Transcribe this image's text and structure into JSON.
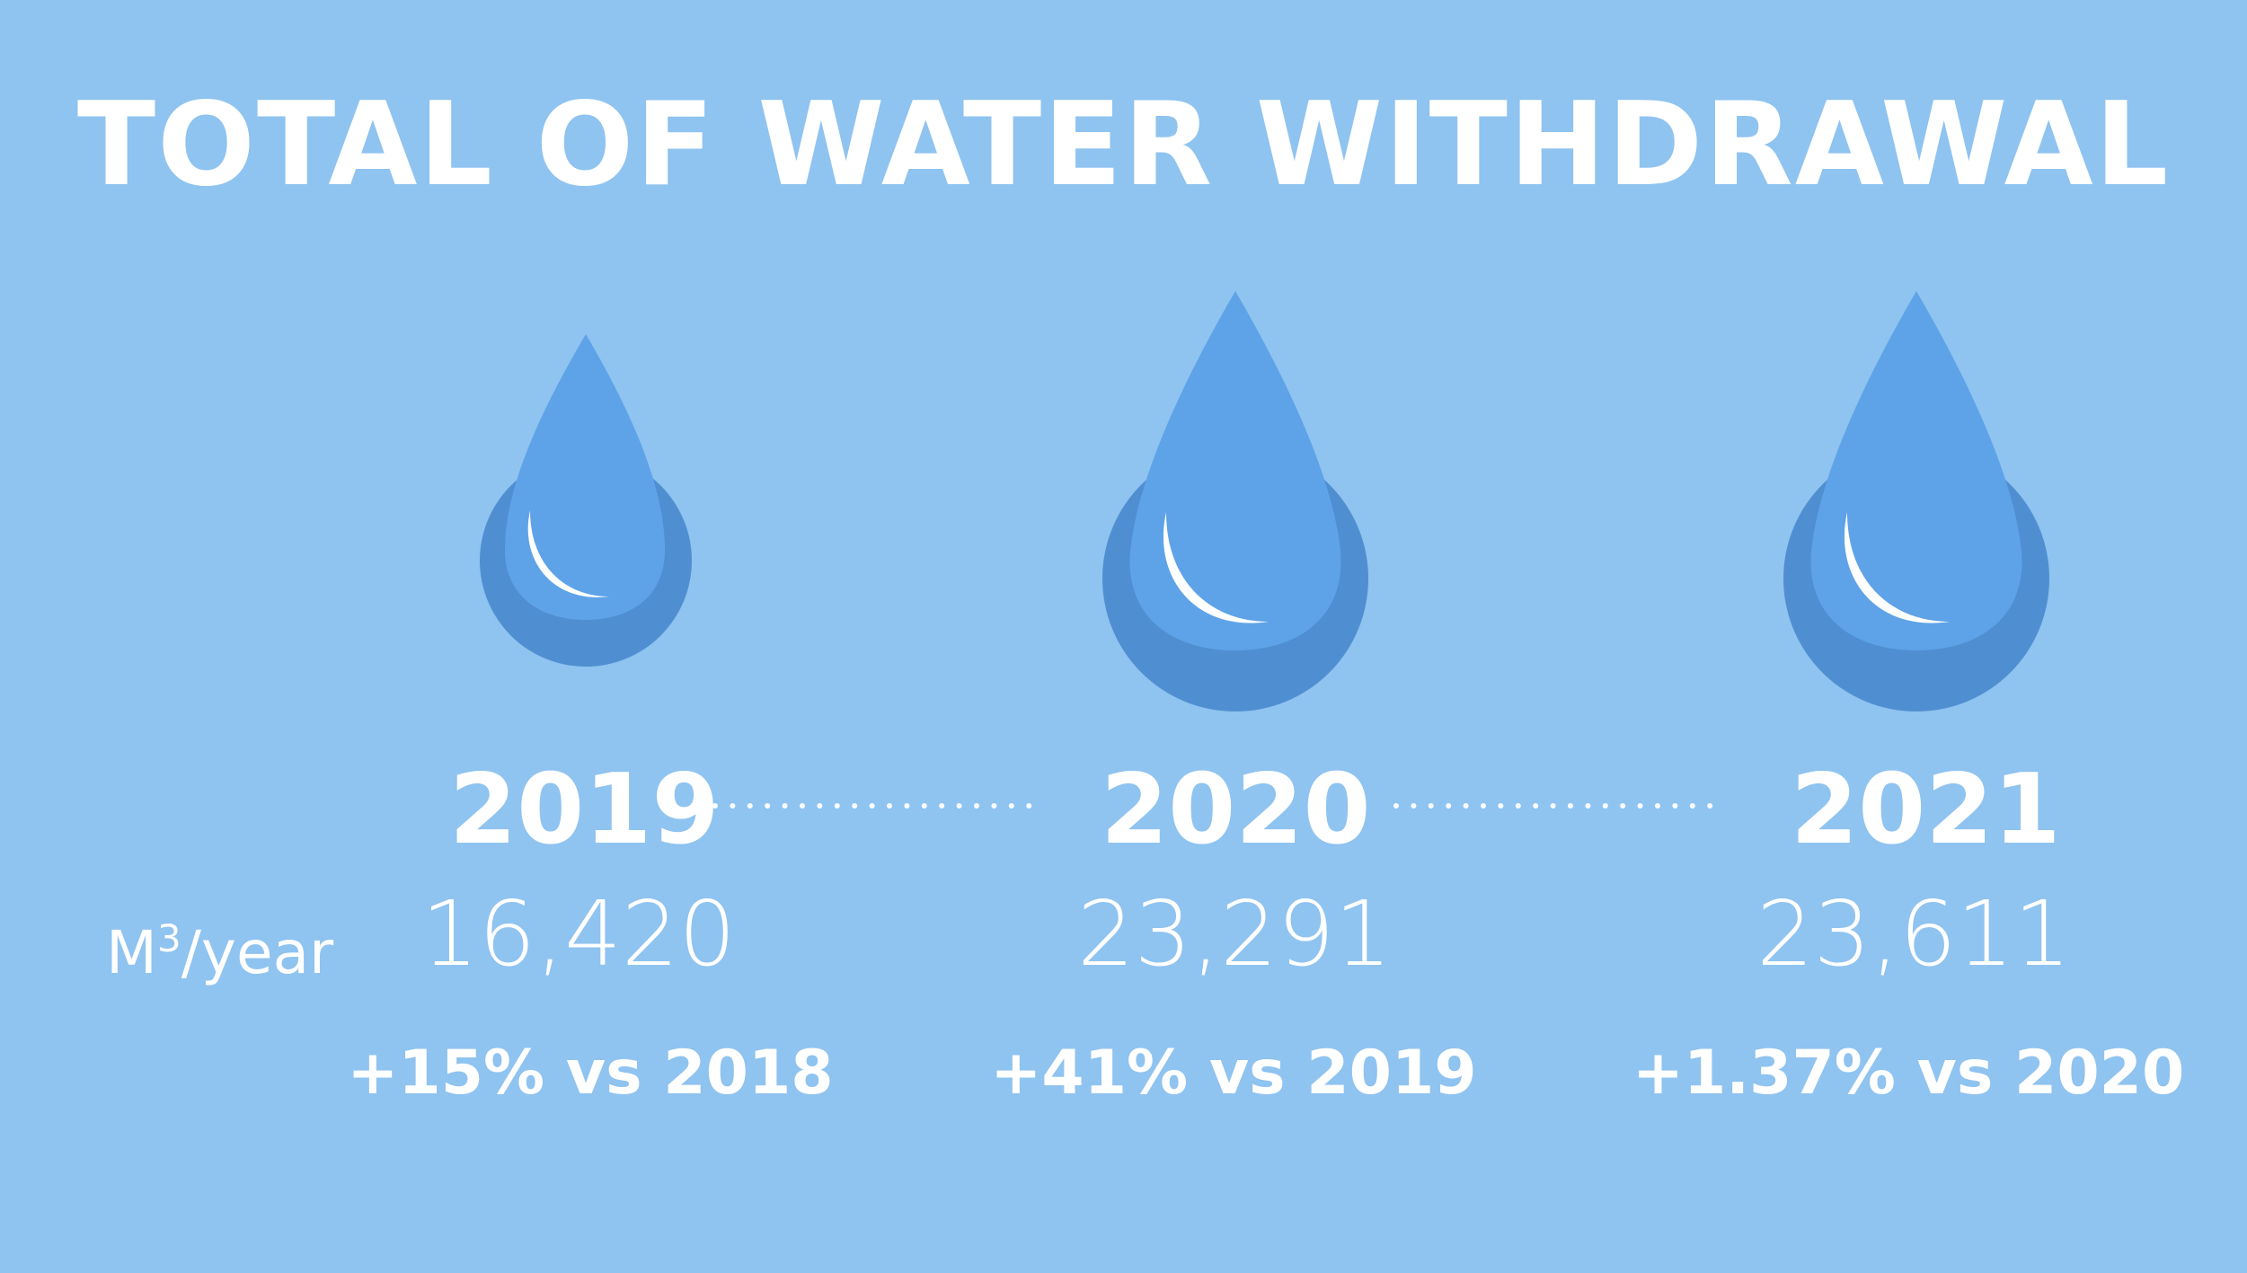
{
  "chart_data": {
    "type": "table",
    "title": "TOTAL OF WATER WITHDRAWAL",
    "unit_base": "M",
    "unit_exp": "3",
    "unit_tail": "/year",
    "categories": [
      "2019",
      "2020",
      "2021"
    ],
    "values": [
      16420,
      23291,
      23611
    ],
    "value_labels": [
      "16,420",
      "23,291",
      "23,611"
    ],
    "changes": [
      "+15% vs 2018",
      "+41% vs 2019",
      "+1.37% vs 2020"
    ]
  },
  "colors": {
    "background": "#8fc3f0",
    "drop_front": "#5ea3e8",
    "drop_back": "#4f8fd1",
    "text": "#ffffff"
  },
  "icons": [
    "water-drop-icon",
    "water-drop-icon",
    "water-drop-icon"
  ]
}
